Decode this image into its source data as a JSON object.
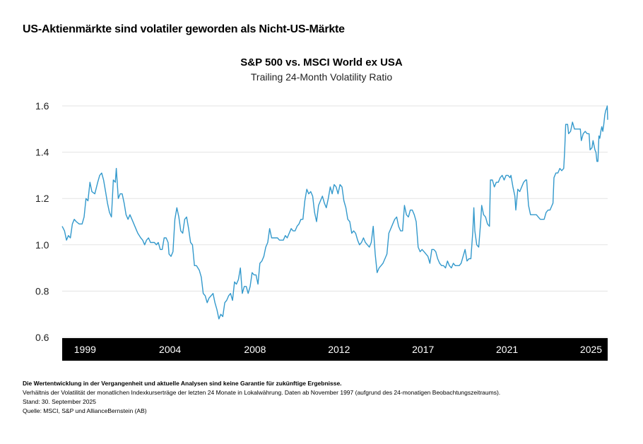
{
  "headline": "US-Aktienmärkte sind volatiler geworden als Nicht-US-Märkte",
  "footnotes": {
    "disclaimer": "Die Wertentwicklung in der Vergangenheit und aktuelle Analysen sind keine Garantie für zukünftige Ergebnisse.",
    "method": "Verhältnis der Volatilität der monatlichen Indexkurserträge der letzten 24 Monate in Lokalwährung. Daten ab November 1997 (aufgrund des 24-monatigen Beobachtungszeitraums).",
    "date": "Stand: 30. September 2025",
    "source": "Quelle: MSCI, S&P und AllianceBernstein (AB)"
  },
  "colors": {
    "line": "#3399cc",
    "grid": "#e3e3e3",
    "axis_band": "#000000",
    "axis_text": "#ffffff"
  },
  "chart_data": {
    "type": "line",
    "title": "S&P 500 vs. MSCI World ex USA",
    "subtitle": "Trailing 24-Month Volatility Ratio",
    "xlabel": "",
    "ylabel": "",
    "ylim": [
      0.6,
      1.6
    ],
    "yticks": [
      "0.6",
      "0.8",
      "1.0",
      "1.2",
      "1.4",
      "1.6"
    ],
    "xlim": [
      1997.83,
      2025.75
    ],
    "xticks": [
      {
        "label": "1999",
        "x": 1999.0
      },
      {
        "label": "2004",
        "x": 2003.35
      },
      {
        "label": "2008",
        "x": 2007.7
      },
      {
        "label": "2012",
        "x": 2012.0
      },
      {
        "label": "2017",
        "x": 2016.3
      },
      {
        "label": "2021",
        "x": 2020.6
      },
      {
        "label": "2025",
        "x": 2024.9
      }
    ],
    "grid": true,
    "series": [
      {
        "name": "S&P 500 vs. MSCI World ex USA",
        "points": [
          [
            1997.83,
            1.08
          ],
          [
            1997.95,
            1.06
          ],
          [
            1998.05,
            1.02
          ],
          [
            1998.15,
            1.04
          ],
          [
            1998.25,
            1.03
          ],
          [
            1998.35,
            1.09
          ],
          [
            1998.45,
            1.11
          ],
          [
            1998.55,
            1.1
          ],
          [
            1998.7,
            1.09
          ],
          [
            1998.85,
            1.09
          ],
          [
            1998.95,
            1.12
          ],
          [
            1999.05,
            1.2
          ],
          [
            1999.15,
            1.19
          ],
          [
            1999.25,
            1.27
          ],
          [
            1999.35,
            1.23
          ],
          [
            1999.5,
            1.22
          ],
          [
            1999.65,
            1.27
          ],
          [
            1999.75,
            1.3
          ],
          [
            1999.85,
            1.31
          ],
          [
            1999.95,
            1.28
          ],
          [
            2000.05,
            1.23
          ],
          [
            2000.15,
            1.18
          ],
          [
            2000.25,
            1.14
          ],
          [
            2000.35,
            1.12
          ],
          [
            2000.45,
            1.28
          ],
          [
            2000.55,
            1.27
          ],
          [
            2000.6,
            1.33
          ],
          [
            2000.7,
            1.2
          ],
          [
            2000.8,
            1.22
          ],
          [
            2000.9,
            1.22
          ],
          [
            2001.0,
            1.18
          ],
          [
            2001.1,
            1.13
          ],
          [
            2001.2,
            1.11
          ],
          [
            2001.3,
            1.13
          ],
          [
            2001.4,
            1.11
          ],
          [
            2001.5,
            1.09
          ],
          [
            2001.6,
            1.07
          ],
          [
            2001.7,
            1.05
          ],
          [
            2001.85,
            1.03
          ],
          [
            2001.95,
            1.02
          ],
          [
            2002.05,
            1.0
          ],
          [
            2002.15,
            1.02
          ],
          [
            2002.25,
            1.03
          ],
          [
            2002.35,
            1.01
          ],
          [
            2002.45,
            1.01
          ],
          [
            2002.55,
            1.01
          ],
          [
            2002.65,
            1.0
          ],
          [
            2002.75,
            1.01
          ],
          [
            2002.85,
            0.98
          ],
          [
            2002.95,
            0.98
          ],
          [
            2003.05,
            1.03
          ],
          [
            2003.15,
            1.03
          ],
          [
            2003.25,
            1.01
          ],
          [
            2003.3,
            0.96
          ],
          [
            2003.4,
            0.95
          ],
          [
            2003.5,
            0.97
          ],
          [
            2003.6,
            1.11
          ],
          [
            2003.7,
            1.16
          ],
          [
            2003.8,
            1.12
          ],
          [
            2003.9,
            1.06
          ],
          [
            2004.0,
            1.05
          ],
          [
            2004.1,
            1.11
          ],
          [
            2004.2,
            1.12
          ],
          [
            2004.3,
            1.07
          ],
          [
            2004.4,
            1.01
          ],
          [
            2004.5,
            1.0
          ],
          [
            2004.6,
            0.91
          ],
          [
            2004.7,
            0.91
          ],
          [
            2004.85,
            0.89
          ],
          [
            2004.95,
            0.86
          ],
          [
            2005.05,
            0.79
          ],
          [
            2005.15,
            0.78
          ],
          [
            2005.25,
            0.75
          ],
          [
            2005.35,
            0.77
          ],
          [
            2005.45,
            0.78
          ],
          [
            2005.55,
            0.79
          ],
          [
            2005.65,
            0.75
          ],
          [
            2005.75,
            0.72
          ],
          [
            2005.85,
            0.68
          ],
          [
            2005.95,
            0.7
          ],
          [
            2006.05,
            0.69
          ],
          [
            2006.15,
            0.75
          ],
          [
            2006.25,
            0.76
          ],
          [
            2006.35,
            0.78
          ],
          [
            2006.45,
            0.79
          ],
          [
            2006.55,
            0.76
          ],
          [
            2006.65,
            0.84
          ],
          [
            2006.75,
            0.83
          ],
          [
            2006.85,
            0.85
          ],
          [
            2006.95,
            0.9
          ],
          [
            2007.05,
            0.79
          ],
          [
            2007.15,
            0.82
          ],
          [
            2007.25,
            0.82
          ],
          [
            2007.35,
            0.79
          ],
          [
            2007.45,
            0.82
          ],
          [
            2007.55,
            0.88
          ],
          [
            2007.65,
            0.87
          ],
          [
            2007.75,
            0.87
          ],
          [
            2007.85,
            0.83
          ],
          [
            2007.95,
            0.92
          ],
          [
            2008.05,
            0.93
          ],
          [
            2008.15,
            0.95
          ],
          [
            2008.25,
            0.99
          ],
          [
            2008.35,
            1.01
          ],
          [
            2008.45,
            1.07
          ],
          [
            2008.55,
            1.03
          ],
          [
            2008.65,
            1.03
          ],
          [
            2008.75,
            1.03
          ],
          [
            2008.85,
            1.03
          ],
          [
            2008.95,
            1.02
          ],
          [
            2009.05,
            1.02
          ],
          [
            2009.15,
            1.02
          ],
          [
            2009.25,
            1.04
          ],
          [
            2009.35,
            1.03
          ],
          [
            2009.45,
            1.05
          ],
          [
            2009.55,
            1.07
          ],
          [
            2009.65,
            1.06
          ],
          [
            2009.75,
            1.06
          ],
          [
            2009.85,
            1.08
          ],
          [
            2009.95,
            1.09
          ],
          [
            2010.05,
            1.11
          ],
          [
            2010.15,
            1.11
          ],
          [
            2010.25,
            1.19
          ],
          [
            2010.35,
            1.24
          ],
          [
            2010.45,
            1.22
          ],
          [
            2010.55,
            1.23
          ],
          [
            2010.65,
            1.21
          ],
          [
            2010.75,
            1.14
          ],
          [
            2010.85,
            1.1
          ],
          [
            2010.95,
            1.17
          ],
          [
            2011.05,
            1.19
          ],
          [
            2011.15,
            1.21
          ],
          [
            2011.25,
            1.18
          ],
          [
            2011.35,
            1.16
          ],
          [
            2011.45,
            1.2
          ],
          [
            2011.55,
            1.25
          ],
          [
            2011.65,
            1.22
          ],
          [
            2011.75,
            1.26
          ],
          [
            2011.85,
            1.25
          ],
          [
            2011.95,
            1.22
          ],
          [
            2012.05,
            1.26
          ],
          [
            2012.15,
            1.25
          ],
          [
            2012.25,
            1.19
          ],
          [
            2012.35,
            1.16
          ],
          [
            2012.45,
            1.11
          ],
          [
            2012.55,
            1.1
          ],
          [
            2012.65,
            1.05
          ],
          [
            2012.75,
            1.06
          ],
          [
            2012.85,
            1.05
          ],
          [
            2012.95,
            1.02
          ],
          [
            2013.05,
            1.0
          ],
          [
            2013.15,
            1.01
          ],
          [
            2013.25,
            1.03
          ],
          [
            2013.35,
            1.01
          ],
          [
            2013.45,
            1.0
          ],
          [
            2013.55,
            0.99
          ],
          [
            2013.65,
            1.01
          ],
          [
            2013.75,
            1.08
          ],
          [
            2013.85,
            0.96
          ],
          [
            2013.95,
            0.88
          ],
          [
            2014.05,
            0.9
          ],
          [
            2014.15,
            0.91
          ],
          [
            2014.25,
            0.92
          ],
          [
            2014.35,
            0.94
          ],
          [
            2014.45,
            0.96
          ],
          [
            2014.55,
            1.05
          ],
          [
            2014.65,
            1.07
          ],
          [
            2014.75,
            1.09
          ],
          [
            2014.85,
            1.11
          ],
          [
            2014.95,
            1.12
          ],
          [
            2015.05,
            1.08
          ],
          [
            2015.15,
            1.06
          ],
          [
            2015.25,
            1.06
          ],
          [
            2015.35,
            1.17
          ],
          [
            2015.45,
            1.13
          ],
          [
            2015.55,
            1.12
          ],
          [
            2015.65,
            1.15
          ],
          [
            2015.75,
            1.15
          ],
          [
            2015.85,
            1.13
          ],
          [
            2015.95,
            1.1
          ],
          [
            2016.05,
            0.99
          ],
          [
            2016.15,
            0.97
          ],
          [
            2016.25,
            0.98
          ],
          [
            2016.35,
            0.97
          ],
          [
            2016.45,
            0.96
          ],
          [
            2016.55,
            0.95
          ],
          [
            2016.65,
            0.92
          ],
          [
            2016.75,
            0.98
          ],
          [
            2016.85,
            0.98
          ],
          [
            2016.95,
            0.97
          ],
          [
            2017.05,
            0.94
          ],
          [
            2017.15,
            0.92
          ],
          [
            2017.25,
            0.91
          ],
          [
            2017.35,
            0.91
          ],
          [
            2017.45,
            0.9
          ],
          [
            2017.55,
            0.93
          ],
          [
            2017.65,
            0.91
          ],
          [
            2017.75,
            0.9
          ],
          [
            2017.85,
            0.92
          ],
          [
            2017.95,
            0.91
          ],
          [
            2018.05,
            0.91
          ],
          [
            2018.15,
            0.91
          ],
          [
            2018.25,
            0.92
          ],
          [
            2018.35,
            0.95
          ],
          [
            2018.45,
            0.98
          ],
          [
            2018.55,
            0.93
          ],
          [
            2018.65,
            0.94
          ],
          [
            2018.75,
            0.94
          ],
          [
            2018.85,
            1.06
          ],
          [
            2018.9,
            1.16
          ],
          [
            2018.95,
            1.06
          ],
          [
            2019.05,
            1.0
          ],
          [
            2019.15,
            0.99
          ],
          [
            2019.25,
            1.1
          ],
          [
            2019.3,
            1.17
          ],
          [
            2019.4,
            1.13
          ],
          [
            2019.5,
            1.12
          ],
          [
            2019.6,
            1.09
          ],
          [
            2019.7,
            1.08
          ],
          [
            2019.75,
            1.28
          ],
          [
            2019.85,
            1.28
          ],
          [
            2019.95,
            1.25
          ],
          [
            2020.05,
            1.27
          ],
          [
            2020.15,
            1.27
          ],
          [
            2020.25,
            1.29
          ],
          [
            2020.35,
            1.3
          ],
          [
            2020.45,
            1.28
          ],
          [
            2020.55,
            1.3
          ],
          [
            2020.65,
            1.3
          ],
          [
            2020.75,
            1.29
          ],
          [
            2020.8,
            1.3
          ],
          [
            2020.9,
            1.25
          ],
          [
            2021.0,
            1.21
          ],
          [
            2021.05,
            1.15
          ],
          [
            2021.15,
            1.24
          ],
          [
            2021.25,
            1.23
          ],
          [
            2021.35,
            1.25
          ],
          [
            2021.45,
            1.27
          ],
          [
            2021.55,
            1.28
          ],
          [
            2021.6,
            1.28
          ],
          [
            2021.7,
            1.17
          ],
          [
            2021.8,
            1.13
          ],
          [
            2021.9,
            1.13
          ],
          [
            2022.0,
            1.13
          ],
          [
            2022.1,
            1.13
          ],
          [
            2022.2,
            1.12
          ],
          [
            2022.3,
            1.11
          ],
          [
            2022.4,
            1.11
          ],
          [
            2022.5,
            1.11
          ],
          [
            2022.6,
            1.14
          ],
          [
            2022.7,
            1.15
          ],
          [
            2022.8,
            1.15
          ],
          [
            2022.9,
            1.17
          ],
          [
            2022.95,
            1.18
          ],
          [
            2023.0,
            1.29
          ],
          [
            2023.1,
            1.31
          ],
          [
            2023.2,
            1.31
          ],
          [
            2023.3,
            1.33
          ],
          [
            2023.4,
            1.32
          ],
          [
            2023.5,
            1.33
          ],
          [
            2023.55,
            1.41
          ],
          [
            2023.6,
            1.52
          ],
          [
            2023.7,
            1.52
          ],
          [
            2023.75,
            1.48
          ],
          [
            2023.85,
            1.49
          ],
          [
            2023.95,
            1.53
          ],
          [
            2024.05,
            1.5
          ],
          [
            2024.15,
            1.5
          ],
          [
            2024.25,
            1.5
          ],
          [
            2024.35,
            1.5
          ],
          [
            2024.4,
            1.45
          ],
          [
            2024.5,
            1.48
          ],
          [
            2024.6,
            1.49
          ],
          [
            2024.7,
            1.48
          ],
          [
            2024.8,
            1.48
          ],
          [
            2024.85,
            1.41
          ],
          [
            2024.95,
            1.42
          ],
          [
            2025.0,
            1.45
          ],
          [
            2025.1,
            1.41
          ],
          [
            2025.15,
            1.4
          ],
          [
            2025.2,
            1.36
          ],
          [
            2025.25,
            1.36
          ],
          [
            2025.3,
            1.47
          ],
          [
            2025.35,
            1.46
          ],
          [
            2025.4,
            1.49
          ],
          [
            2025.45,
            1.51
          ],
          [
            2025.5,
            1.49
          ],
          [
            2025.55,
            1.52
          ],
          [
            2025.6,
            1.56
          ],
          [
            2025.65,
            1.58
          ],
          [
            2025.7,
            1.59
          ],
          [
            2025.73,
            1.6
          ],
          [
            2025.75,
            1.54
          ]
        ]
      }
    ]
  }
}
